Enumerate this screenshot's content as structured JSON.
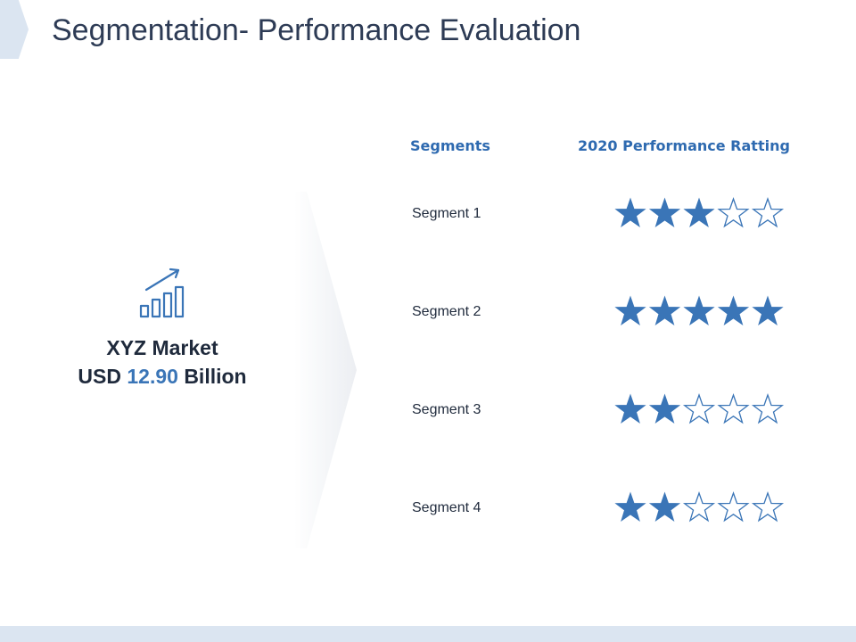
{
  "slide": {
    "title": "Segmentation- Performance Evaluation"
  },
  "market": {
    "icon": "growth-bar-chart-icon",
    "name": "XYZ Market",
    "value_prefix": "USD",
    "value": "12.90",
    "value_suffix": "Billion"
  },
  "table": {
    "headers": {
      "segments": "Segments",
      "rating": "2020 Performance Ratting"
    },
    "max_rating": 5,
    "rows": [
      {
        "label": "Segment 1",
        "rating": 3
      },
      {
        "label": "Segment 2",
        "rating": 5
      },
      {
        "label": "Segment 3",
        "rating": 2
      },
      {
        "label": "Segment 4",
        "rating": 2
      }
    ]
  },
  "colors": {
    "accent": "#3a75b7",
    "star": "#3a75b7",
    "title": "#2d3b55",
    "header": "#2e6ab0",
    "bar": "#dbe5f1"
  }
}
